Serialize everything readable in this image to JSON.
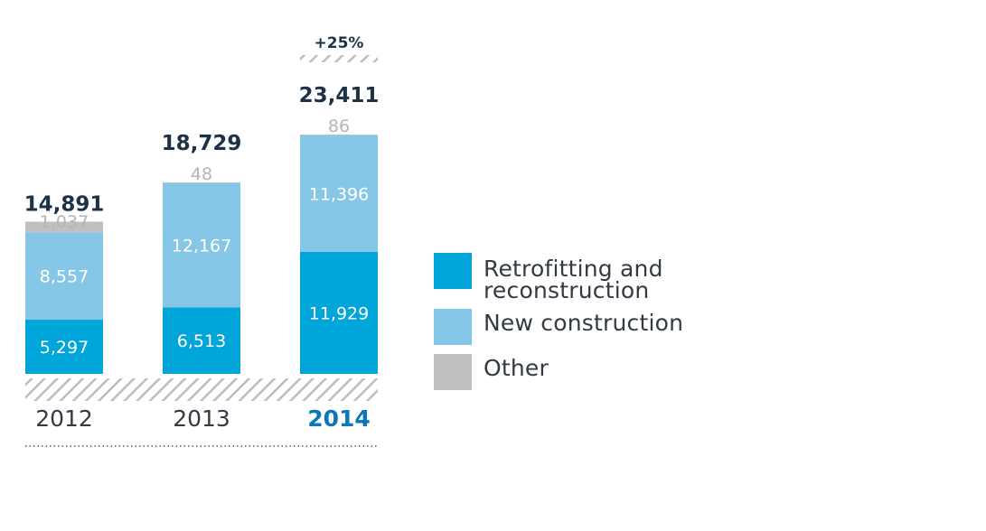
{
  "colors": {
    "retrofit": "#00a5d9",
    "new": "#86c7e8",
    "other": "#c0c0c0",
    "total_text": "#1d3147",
    "other_text": "#b5b5b5",
    "highlight_year": "#0a78b8",
    "year_text": "#333a44",
    "hatch": "#bdbdbd"
  },
  "chart_data": {
    "type": "bar",
    "stacked": true,
    "categories": [
      "2012",
      "2013",
      "2014"
    ],
    "highlight_category": "2014",
    "series": [
      {
        "name": "Retrofitting and reconstruction",
        "key": "retrofit",
        "values": [
          5297,
          6513,
          11929
        ],
        "labels": [
          "5,297",
          "6,513",
          "11,929"
        ]
      },
      {
        "name": "New construction",
        "key": "new",
        "values": [
          8557,
          12167,
          11396
        ],
        "labels": [
          "8,557",
          "12,167",
          "11,396"
        ]
      },
      {
        "name": "Other",
        "key": "other",
        "values": [
          1037,
          48,
          86
        ],
        "labels": [
          "1,037",
          "48",
          "86"
        ]
      }
    ],
    "totals": [
      "14,891",
      "18,729",
      "23,411"
    ],
    "annotation": "+25%",
    "ylim": [
      0,
      23411
    ],
    "legend_position": "right"
  },
  "legend": {
    "items": [
      {
        "key": "retrofit",
        "line1": "Retrofitting and",
        "line2": "reconstruction"
      },
      {
        "key": "new",
        "line1": "New construction",
        "line2": ""
      },
      {
        "key": "other",
        "line1": "Other",
        "line2": ""
      }
    ]
  }
}
